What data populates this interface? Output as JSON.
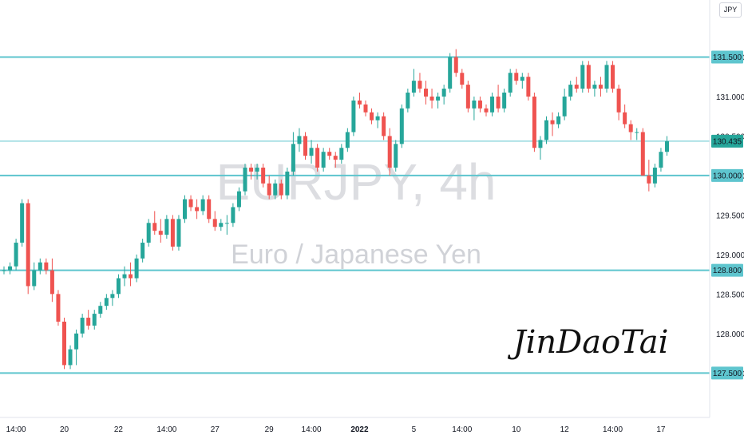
{
  "chart_data": {
    "type": "candlestick",
    "symbol": "EURJPY, 4h",
    "description": "Euro / Japanese Yen",
    "currency": "JPY",
    "ylim": [
      127.2,
      132.0
    ],
    "y_ticks": [
      "131.500",
      "131.000",
      "130.500",
      "130.000",
      "129.500",
      "129.000",
      "128.500",
      "128.000",
      "127.500"
    ],
    "x_ticks": [
      {
        "label": "14:00",
        "bar": 2
      },
      {
        "label": "20",
        "bar": 10
      },
      {
        "label": "22",
        "bar": 19
      },
      {
        "label": "14:00",
        "bar": 27
      },
      {
        "label": "27",
        "bar": 35
      },
      {
        "label": "29",
        "bar": 44
      },
      {
        "label": "14:00",
        "bar": 51
      },
      {
        "label": "2022",
        "bar": 59,
        "bold": true
      },
      {
        "label": "5",
        "bar": 68
      },
      {
        "label": "14:00",
        "bar": 76
      },
      {
        "label": "10",
        "bar": 85
      },
      {
        "label": "12",
        "bar": 93
      },
      {
        "label": "14:00",
        "bar": 101
      },
      {
        "label": "17",
        "bar": 109
      }
    ],
    "horizontal_levels": [
      {
        "value": 131.5,
        "label": "131.500"
      },
      {
        "value": 130.0,
        "label": "130.000"
      },
      {
        "value": 128.8,
        "label": "128.800"
      },
      {
        "value": 127.5,
        "label": "127.500"
      }
    ],
    "last_price": {
      "value": 130.435,
      "label": "130.435"
    },
    "up_color": "#26a69a",
    "down_color": "#ef5350",
    "level_color": "#5ec5ce",
    "candles": [
      [
        128.8,
        128.85,
        128.75,
        128.8
      ],
      [
        128.8,
        128.9,
        128.75,
        128.85
      ],
      [
        128.85,
        129.2,
        128.8,
        129.15
      ],
      [
        129.15,
        129.7,
        129.1,
        129.65
      ],
      [
        129.65,
        129.7,
        128.5,
        128.6
      ],
      [
        128.6,
        128.9,
        128.55,
        128.8
      ],
      [
        128.8,
        128.95,
        128.75,
        128.9
      ],
      [
        128.9,
        128.95,
        128.75,
        128.8
      ],
      [
        128.8,
        128.95,
        128.4,
        128.5
      ],
      [
        128.5,
        128.55,
        128.1,
        128.15
      ],
      [
        128.15,
        128.2,
        127.55,
        127.6
      ],
      [
        127.6,
        127.85,
        127.55,
        127.8
      ],
      [
        127.8,
        128.05,
        127.6,
        128.0
      ],
      [
        128.0,
        128.25,
        127.95,
        128.2
      ],
      [
        128.2,
        128.3,
        128.05,
        128.1
      ],
      [
        128.1,
        128.3,
        128.05,
        128.25
      ],
      [
        128.25,
        128.4,
        128.2,
        128.35
      ],
      [
        128.35,
        128.5,
        128.3,
        128.45
      ],
      [
        128.45,
        128.55,
        128.35,
        128.5
      ],
      [
        128.5,
        128.75,
        128.45,
        128.7
      ],
      [
        128.7,
        128.85,
        128.6,
        128.75
      ],
      [
        128.75,
        128.9,
        128.6,
        128.7
      ],
      [
        128.7,
        129.0,
        128.65,
        128.95
      ],
      [
        128.95,
        129.2,
        128.9,
        129.15
      ],
      [
        129.15,
        129.45,
        129.1,
        129.4
      ],
      [
        129.4,
        129.55,
        129.25,
        129.3
      ],
      [
        129.3,
        129.45,
        129.15,
        129.25
      ],
      [
        129.25,
        129.5,
        129.2,
        129.45
      ],
      [
        129.45,
        129.5,
        129.05,
        129.1
      ],
      [
        129.1,
        129.5,
        129.05,
        129.45
      ],
      [
        129.45,
        129.75,
        129.4,
        129.7
      ],
      [
        129.7,
        129.75,
        129.55,
        129.6
      ],
      [
        129.6,
        129.7,
        129.45,
        129.55
      ],
      [
        129.55,
        129.75,
        129.5,
        129.7
      ],
      [
        129.7,
        129.75,
        129.4,
        129.45
      ],
      [
        129.45,
        129.55,
        129.3,
        129.35
      ],
      [
        129.35,
        129.45,
        129.3,
        129.4
      ],
      [
        129.4,
        129.5,
        129.25,
        129.4
      ],
      [
        129.4,
        129.65,
        129.35,
        129.6
      ],
      [
        129.6,
        129.85,
        129.55,
        129.8
      ],
      [
        129.8,
        130.15,
        129.75,
        130.1
      ],
      [
        130.1,
        130.15,
        129.95,
        130.05
      ],
      [
        130.05,
        130.15,
        129.95,
        130.1
      ],
      [
        130.1,
        130.15,
        129.85,
        129.9
      ],
      [
        129.9,
        130.0,
        129.7,
        129.75
      ],
      [
        129.75,
        129.95,
        129.7,
        129.9
      ],
      [
        129.9,
        129.95,
        129.7,
        129.75
      ],
      [
        129.75,
        130.1,
        129.7,
        130.05
      ],
      [
        130.05,
        130.55,
        130.0,
        130.4
      ],
      [
        130.4,
        130.6,
        130.3,
        130.5
      ],
      [
        130.5,
        130.55,
        130.2,
        130.25
      ],
      [
        130.25,
        130.45,
        130.15,
        130.35
      ],
      [
        130.35,
        130.4,
        130.05,
        130.1
      ],
      [
        130.1,
        130.35,
        130.05,
        130.3
      ],
      [
        130.3,
        130.35,
        130.2,
        130.25
      ],
      [
        130.25,
        130.3,
        130.1,
        130.2
      ],
      [
        130.2,
        130.4,
        130.15,
        130.35
      ],
      [
        130.35,
        130.6,
        130.3,
        130.55
      ],
      [
        130.55,
        131.0,
        130.5,
        130.95
      ],
      [
        130.95,
        131.05,
        130.85,
        130.9
      ],
      [
        130.9,
        130.95,
        130.75,
        130.8
      ],
      [
        130.8,
        130.85,
        130.65,
        130.7
      ],
      [
        130.7,
        130.8,
        130.6,
        130.75
      ],
      [
        130.75,
        130.8,
        130.45,
        130.5
      ],
      [
        130.5,
        130.6,
        130.0,
        130.1
      ],
      [
        130.1,
        130.45,
        130.05,
        130.4
      ],
      [
        130.4,
        130.9,
        130.35,
        130.85
      ],
      [
        130.85,
        131.1,
        130.8,
        131.05
      ],
      [
        131.05,
        131.35,
        131.0,
        131.2
      ],
      [
        131.2,
        131.3,
        131.05,
        131.1
      ],
      [
        131.1,
        131.2,
        130.9,
        131.0
      ],
      [
        131.0,
        131.1,
        130.85,
        130.95
      ],
      [
        130.95,
        131.05,
        130.85,
        131.0
      ],
      [
        131.0,
        131.15,
        130.9,
        131.1
      ],
      [
        131.1,
        131.55,
        131.05,
        131.5
      ],
      [
        131.5,
        131.6,
        131.25,
        131.3
      ],
      [
        131.3,
        131.35,
        131.1,
        131.15
      ],
      [
        131.15,
        131.2,
        130.8,
        130.85
      ],
      [
        130.85,
        131.0,
        130.7,
        130.95
      ],
      [
        130.95,
        131.0,
        130.8,
        130.85
      ],
      [
        130.85,
        130.9,
        130.75,
        130.8
      ],
      [
        130.8,
        131.05,
        130.75,
        131.0
      ],
      [
        131.0,
        131.15,
        130.8,
        130.85
      ],
      [
        130.85,
        131.1,
        130.8,
        131.05
      ],
      [
        131.05,
        131.35,
        131.0,
        131.3
      ],
      [
        131.3,
        131.35,
        131.15,
        131.2
      ],
      [
        131.2,
        131.3,
        131.1,
        131.25
      ],
      [
        131.25,
        131.3,
        130.95,
        131.0
      ],
      [
        131.0,
        131.05,
        130.3,
        130.35
      ],
      [
        130.35,
        130.5,
        130.2,
        130.45
      ],
      [
        130.45,
        130.75,
        130.4,
        130.7
      ],
      [
        130.7,
        130.8,
        130.5,
        130.65
      ],
      [
        130.65,
        130.8,
        130.6,
        130.75
      ],
      [
        130.75,
        131.1,
        130.7,
        131.0
      ],
      [
        131.0,
        131.2,
        130.95,
        131.15
      ],
      [
        131.15,
        131.25,
        131.05,
        131.1
      ],
      [
        131.1,
        131.45,
        131.05,
        131.4
      ],
      [
        131.4,
        131.45,
        131.05,
        131.1
      ],
      [
        131.1,
        131.2,
        131.0,
        131.15
      ],
      [
        131.15,
        131.25,
        131.0,
        131.1
      ],
      [
        131.1,
        131.45,
        131.05,
        131.4
      ],
      [
        131.4,
        131.45,
        131.05,
        131.1
      ],
      [
        131.1,
        131.15,
        130.7,
        130.8
      ],
      [
        130.8,
        130.9,
        130.6,
        130.65
      ],
      [
        130.65,
        130.7,
        130.45,
        130.55
      ],
      [
        130.55,
        130.6,
        130.45,
        130.55
      ],
      [
        130.55,
        130.6,
        130.0,
        130.0
      ],
      [
        130.0,
        130.2,
        129.8,
        129.9
      ],
      [
        129.9,
        130.15,
        129.85,
        130.1
      ],
      [
        130.1,
        130.35,
        130.05,
        130.3
      ],
      [
        130.3,
        130.5,
        130.25,
        130.435
      ]
    ]
  },
  "watermark": {
    "title": "EURJPY, 4h",
    "subtitle": "Euro / Japanese Yen"
  },
  "signature_text": "JinDaoTai",
  "header": {
    "currency_label": "JPY"
  }
}
